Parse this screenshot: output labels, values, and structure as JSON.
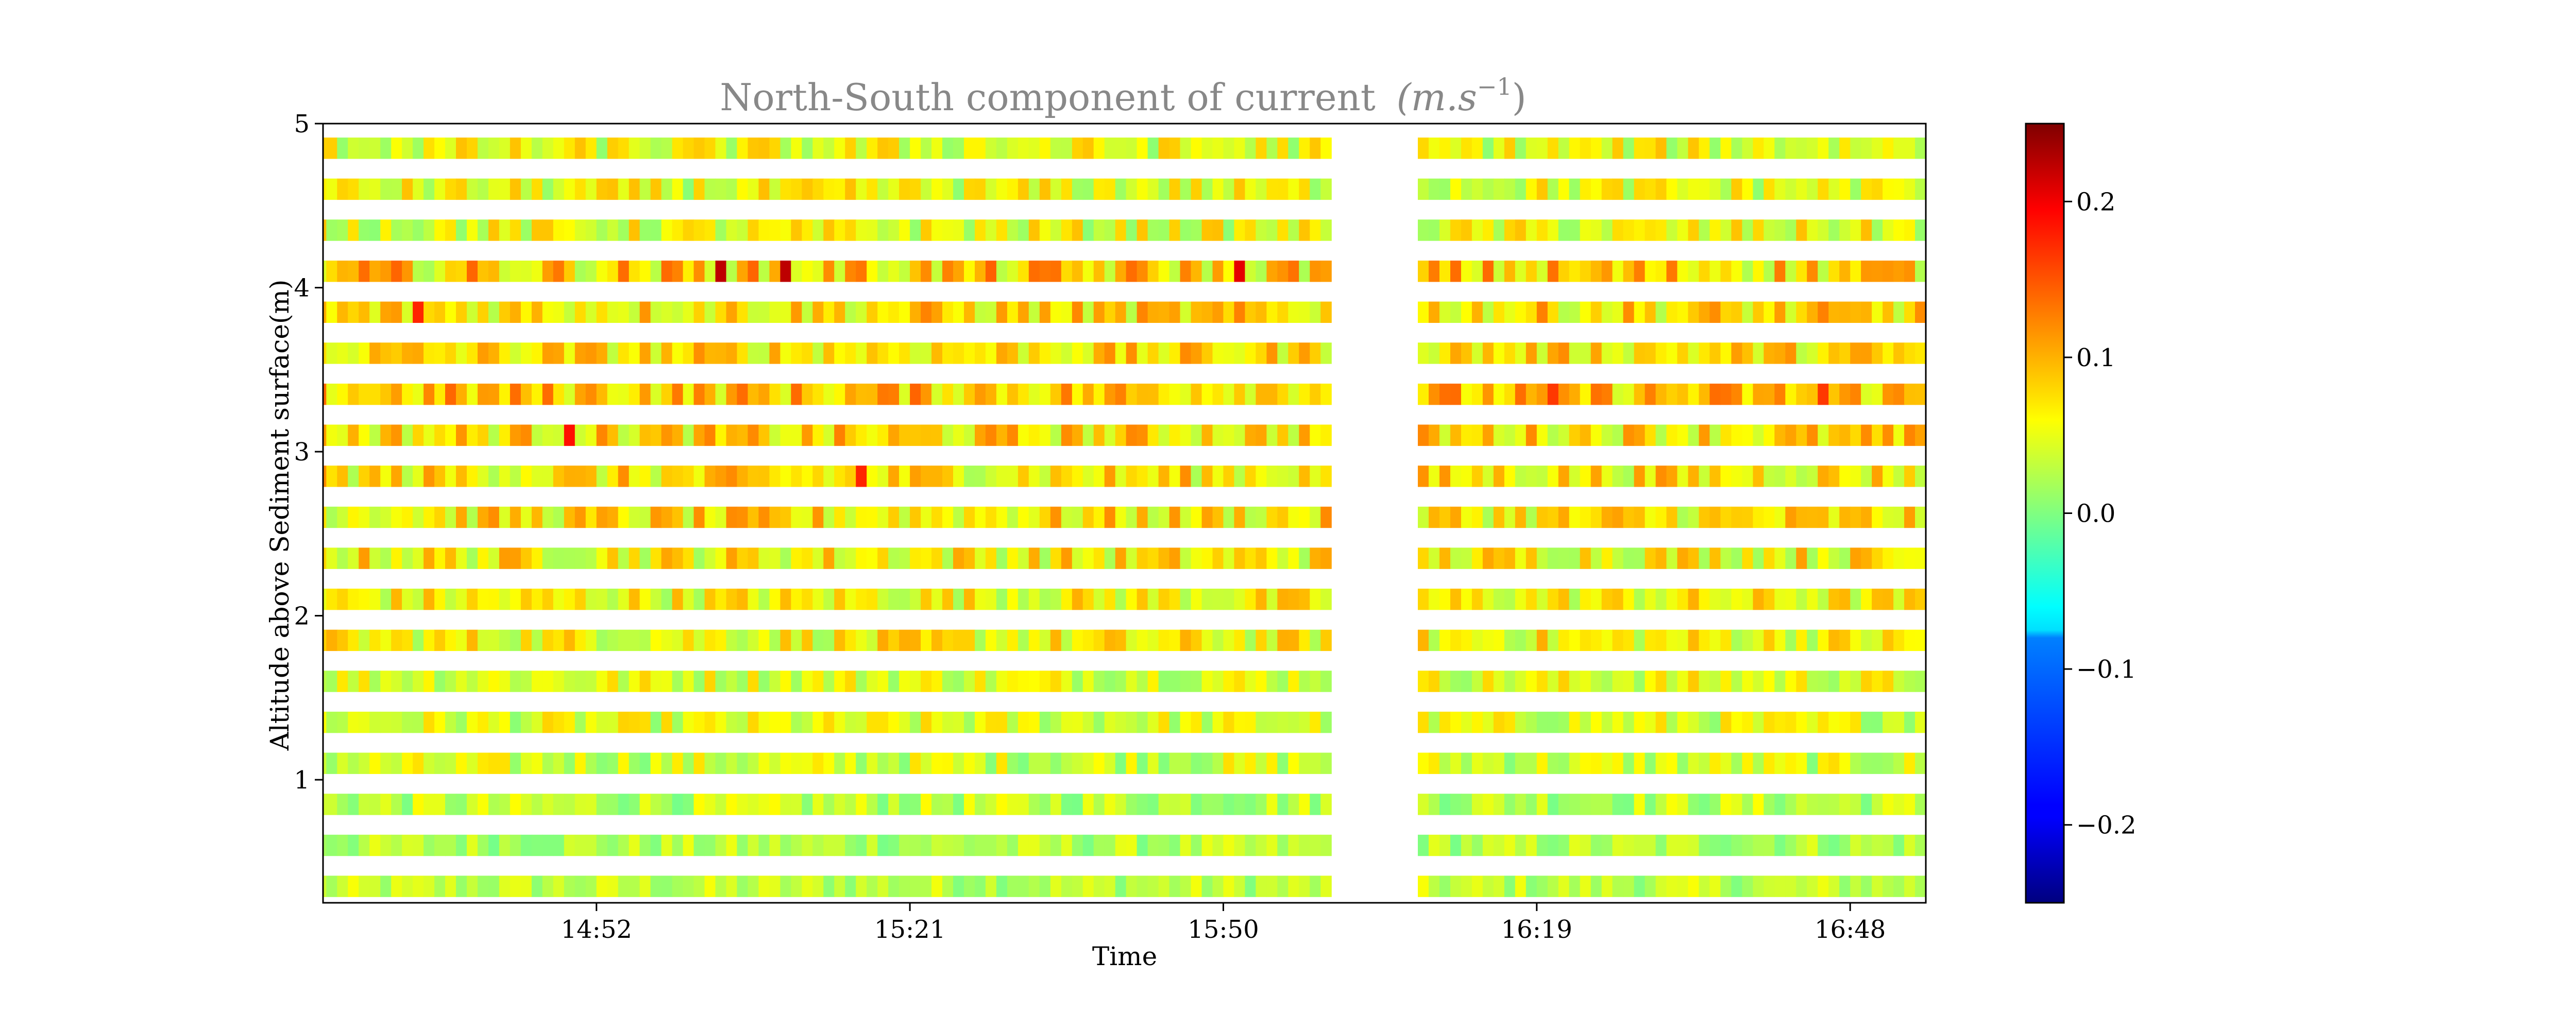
{
  "chart_data": {
    "type": "heatmap",
    "title": "North-South component of current",
    "title_units_base": "(m.s",
    "title_units_exp": "−1",
    "title_units_close": ")",
    "xlabel": "Time",
    "ylabel": "Altitude above Sediment surface(m)",
    "x_ticks": [
      "14:52",
      "15:21",
      "15:50",
      "16:19",
      "16:48"
    ],
    "x_tick_minutes": [
      892,
      921,
      950,
      979,
      1008
    ],
    "x_range_minutes": [
      866.7,
      1015
    ],
    "gap_minutes": [
      960,
      968
    ],
    "time_step_minutes": 1,
    "y_ticks": [
      1,
      2,
      3,
      4,
      5
    ],
    "y_range": [
      0.25,
      5
    ],
    "altitudes": [
      0.35,
      0.6,
      0.85,
      1.1,
      1.35,
      1.6,
      1.85,
      2.1,
      2.35,
      2.6,
      2.85,
      3.1,
      3.35,
      3.6,
      3.85,
      4.1,
      4.35,
      4.6,
      4.85
    ],
    "bin_height_m": 0.13,
    "color_scale": "jet",
    "colorbar_range": [
      -0.25,
      0.25
    ],
    "colorbar_ticks": [
      "−0.2",
      "−0.1",
      "0.0",
      "0.1",
      "0.2"
    ],
    "colorbar_tick_values": [
      -0.2,
      -0.1,
      0.0,
      0.1,
      0.2
    ],
    "value_note": "values estimated; mostly 0.00 to 0.20 m/s",
    "level_means": [
      0.03,
      0.025,
      0.03,
      0.04,
      0.045,
      0.05,
      0.06,
      0.06,
      0.065,
      0.07,
      0.07,
      0.075,
      0.09,
      0.075,
      0.075,
      0.08,
      0.05,
      0.05,
      0.05
    ],
    "level_spread": [
      0.03,
      0.03,
      0.035,
      0.04,
      0.04,
      0.04,
      0.045,
      0.045,
      0.05,
      0.05,
      0.05,
      0.05,
      0.05,
      0.045,
      0.05,
      0.06,
      0.045,
      0.045,
      0.045
    ],
    "hotspots": [
      {
        "minute": 903,
        "altitude": 4.1,
        "value": 0.22
      },
      {
        "minute": 909,
        "altitude": 4.1,
        "value": 0.22
      },
      {
        "minute": 951,
        "altitude": 4.1,
        "value": 0.2
      },
      {
        "minute": 889,
        "altitude": 3.1,
        "value": 0.18
      },
      {
        "minute": 875,
        "altitude": 3.85,
        "value": 0.17
      },
      {
        "minute": 916,
        "altitude": 2.85,
        "value": 0.17
      },
      {
        "minute": 980,
        "altitude": 3.35,
        "value": 0.16
      },
      {
        "minute": 1005,
        "altitude": 3.35,
        "value": 0.16
      }
    ]
  }
}
